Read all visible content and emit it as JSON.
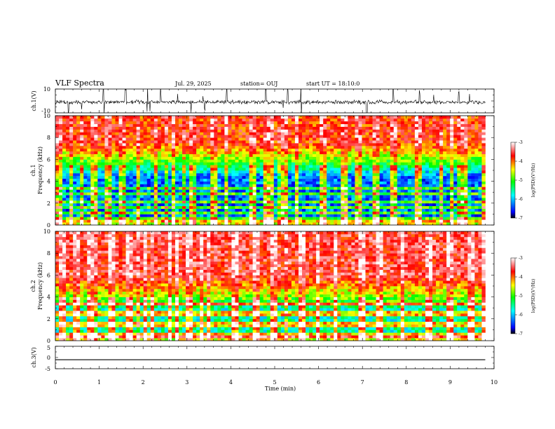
{
  "header": {
    "title": "VLF Spectra",
    "date": "Jul. 29, 2025",
    "station": "station= OUJ",
    "start": "start UT = 18:10:0"
  },
  "chart_data": [
    {
      "type": "line",
      "panel": "ch1-waveform",
      "ylabel": "ch.1(V)",
      "ylim": [
        -10,
        10
      ],
      "yticks": [
        "10",
        "-10"
      ],
      "x_range_min": [
        0,
        10
      ],
      "baseline_v": -1,
      "data_end_min": 9.8,
      "noise_amplitude_v": 1.5,
      "spike_times_min": [
        0.3,
        1.1,
        1.6,
        2.1,
        2.4,
        3.4,
        3.9,
        4.8,
        5.3,
        5.6,
        7.1,
        7.7,
        8.3,
        9.2
      ]
    },
    {
      "type": "heatmap",
      "panel": "ch1-spectrogram",
      "ylabel": "ch.1 Frequency (kHz)",
      "ylim": [
        0,
        10
      ],
      "yticks": [
        "0",
        "2",
        "4",
        "6",
        "8",
        "10"
      ],
      "x_range_min": [
        0,
        10
      ],
      "data_end_min": 9.8,
      "colorbar": {
        "label": "log(PSD)(V²/Hz)",
        "range": [
          -7,
          -3
        ],
        "ticks": [
          "-3",
          "-4",
          "-5",
          "-6",
          "-7"
        ],
        "colors": [
          "#000000",
          "#0000ff",
          "#00ffff",
          "#00ff00",
          "#ffff00",
          "#ff0000",
          "#ffffff"
        ]
      },
      "summary": {
        "quiet_band_khz": [
          0.5,
          4.5
        ],
        "quiet_level": -6.3,
        "high_freq_level": -3.8,
        "strong_lines_khz": [
          0.4,
          0.7,
          1.2,
          1.7,
          2.2,
          2.9,
          3.4
        ],
        "sferic_times_min": [
          0.1,
          0.35,
          0.6,
          0.9,
          1.2,
          1.5,
          1.9,
          2.3,
          2.7,
          3.1,
          3.6,
          3.9,
          4.5,
          4.9,
          5.2,
          5.5,
          6.1,
          6.6,
          6.9,
          7.3,
          7.7,
          8.3,
          8.8,
          9.3
        ]
      }
    },
    {
      "type": "heatmap",
      "panel": "ch2-spectrogram",
      "ylabel": "ch.2 Frequency (kHz)",
      "ylim": [
        0,
        10
      ],
      "yticks": [
        "0",
        "2",
        "4",
        "6",
        "8",
        "10"
      ],
      "x_range_min": [
        0,
        10
      ],
      "data_end_min": 9.8,
      "colorbar": {
        "label": "log(PSD)(V²/Hz)",
        "range": [
          -7,
          -3
        ],
        "ticks": [
          "-3",
          "-4",
          "-5",
          "-6",
          "-7"
        ],
        "colors": [
          "#000000",
          "#0000ff",
          "#00ffff",
          "#00ff00",
          "#ffff00",
          "#ff0000",
          "#ffffff"
        ]
      },
      "summary": {
        "quiet_band_khz": [
          0.5,
          3.0
        ],
        "quiet_level": -5.6,
        "high_freq_level": -3.6,
        "strong_lines_khz": [
          3.4,
          0.5,
          1.5,
          2.5
        ],
        "sferic_times_min": [
          0.2,
          0.5,
          0.8,
          1.3,
          1.7,
          2.2,
          2.6,
          3.0,
          3.5,
          4.1,
          4.6,
          5.0,
          5.6,
          6.0,
          6.4,
          7.0,
          7.4,
          7.9,
          8.5,
          9.0,
          9.5
        ]
      }
    },
    {
      "type": "line",
      "panel": "ch3-waveform",
      "ylabel": "ch.3(V)",
      "ylim": [
        -5,
        5
      ],
      "yticks": [
        "5",
        "0",
        "-5"
      ],
      "x_range_min": [
        0,
        10
      ],
      "constant_v": -1,
      "data_end_min": 9.8
    }
  ],
  "x_axis": {
    "label": "Time (min)",
    "ticks": [
      "0",
      "1",
      "2",
      "3",
      "4",
      "5",
      "6",
      "7",
      "8",
      "9",
      "10"
    ]
  }
}
